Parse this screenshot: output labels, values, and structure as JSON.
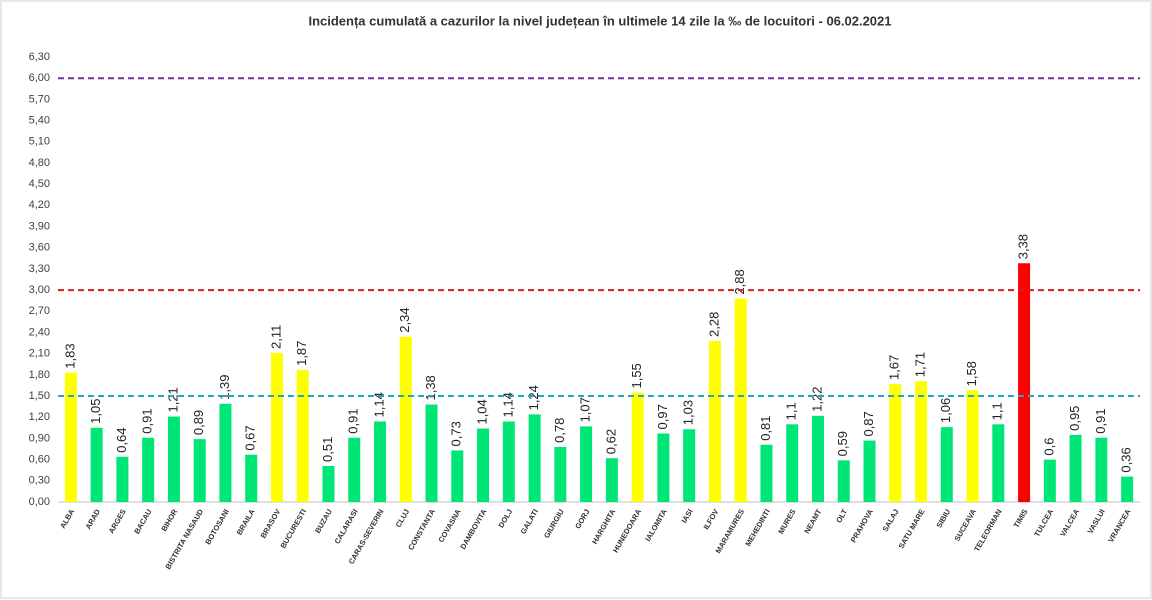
{
  "chart_data": {
    "type": "bar",
    "title": "Incidența cumulată a cazurilor la nivel județean în ultimele 14 zile la ‰ de locuitori - 06.02.2021",
    "categories": [
      "ALBA",
      "ARAD",
      "ARGES",
      "BACAU",
      "BIHOR",
      "BISTRITA NASAUD",
      "BOTOSANI",
      "BRAILA",
      "BRASOV",
      "BUCURESTI",
      "BUZAU",
      "CALARASI",
      "CARAS-SEVERIN",
      "CLUJ",
      "CONSTANTA",
      "COVASNA",
      "DAMBOVITA",
      "DOLJ",
      "GALATI",
      "GIURGIU",
      "GORJ",
      "HARGHITA",
      "HUNEDOARA",
      "IALOMITA",
      "IASI",
      "ILFOV",
      "MARAMURES",
      "MEHEDINTI",
      "MURES",
      "NEAMT",
      "OLT",
      "PRAHOVA",
      "SALAJ",
      "SATU MARE",
      "SIBIU",
      "SUCEAVA",
      "TELEORMAN",
      "TIMIS",
      "TULCEA",
      "VALCEA",
      "VASLUI",
      "VRANCEA"
    ],
    "values": [
      1.83,
      1.05,
      0.64,
      0.91,
      1.21,
      0.89,
      1.39,
      0.67,
      2.11,
      1.87,
      0.51,
      0.91,
      1.14,
      2.34,
      1.38,
      0.73,
      1.04,
      1.14,
      1.24,
      0.78,
      1.07,
      0.62,
      1.55,
      0.97,
      1.03,
      2.28,
      2.88,
      0.81,
      1.1,
      1.22,
      0.59,
      0.87,
      1.67,
      1.71,
      1.06,
      1.58,
      1.1,
      3.38,
      0.6,
      0.95,
      0.91,
      0.36
    ],
    "value_labels": [
      "1,83",
      "1,05",
      "0,64",
      "0,91",
      "1,21",
      "0,89",
      "1,39",
      "0,67",
      "2,11",
      "1,87",
      "0,51",
      "0,91",
      "1,14",
      "2,34",
      "1,38",
      "0,73",
      "1,04",
      "1,14",
      "1,24",
      "0,78",
      "1,07",
      "0,62",
      "1,55",
      "0,97",
      "1,03",
      "2,28",
      "2,88",
      "0,81",
      "1,1",
      "1,22",
      "0,59",
      "0,87",
      "1,67",
      "1,71",
      "1,06",
      "1,58",
      "1,1",
      "3,38",
      "0,6",
      "0,95",
      "0,91",
      "0,36"
    ],
    "colors": [
      "#ffff00",
      "#00e676",
      "#00e676",
      "#00e676",
      "#00e676",
      "#00e676",
      "#00e676",
      "#00e676",
      "#ffff00",
      "#ffff00",
      "#00e676",
      "#00e676",
      "#00e676",
      "#ffff00",
      "#00e676",
      "#00e676",
      "#00e676",
      "#00e676",
      "#00e676",
      "#00e676",
      "#00e676",
      "#00e676",
      "#ffff00",
      "#00e676",
      "#00e676",
      "#ffff00",
      "#ffff00",
      "#00e676",
      "#00e676",
      "#00e676",
      "#00e676",
      "#00e676",
      "#ffff00",
      "#ffff00",
      "#00e676",
      "#ffff00",
      "#00e676",
      "#ff0000",
      "#00e676",
      "#00e676",
      "#00e676",
      "#00e676"
    ],
    "ylim": [
      0,
      6.3
    ],
    "yticks": [
      {
        "value": 0,
        "label": "0,00"
      },
      {
        "value": 0.3,
        "label": "0,30"
      },
      {
        "value": 0.6,
        "label": "0,60"
      },
      {
        "value": 0.9,
        "label": "0,90"
      },
      {
        "value": 1.2,
        "label": "1,20"
      },
      {
        "value": 1.5,
        "label": "1,50"
      },
      {
        "value": 1.8,
        "label": "1,80"
      },
      {
        "value": 2.1,
        "label": "2,10"
      },
      {
        "value": 2.4,
        "label": "2,40"
      },
      {
        "value": 2.7,
        "label": "2,70"
      },
      {
        "value": 3,
        "label": "3,00"
      },
      {
        "value": 3.3,
        "label": "3,30"
      },
      {
        "value": 3.6,
        "label": "3,60"
      },
      {
        "value": 3.9,
        "label": "3,90"
      },
      {
        "value": 4.2,
        "label": "4,20"
      },
      {
        "value": 4.5,
        "label": "4,50"
      },
      {
        "value": 4.8,
        "label": "4,80"
      },
      {
        "value": 5.1,
        "label": "5,10"
      },
      {
        "value": 5.4,
        "label": "5,40"
      },
      {
        "value": 5.7,
        "label": "5,70"
      },
      {
        "value": 6,
        "label": "6,00"
      },
      {
        "value": 6.3,
        "label": "6,30"
      }
    ],
    "reference_lines": [
      {
        "value": 1.5,
        "color": "#1fa5c8"
      },
      {
        "value": 3,
        "color": "#d42020"
      },
      {
        "value": 6,
        "color": "#7030a0"
      }
    ]
  }
}
